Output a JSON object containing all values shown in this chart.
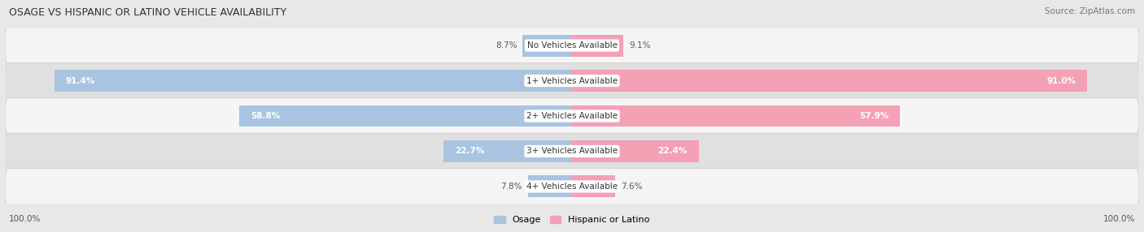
{
  "title": "OSAGE VS HISPANIC OR LATINO VEHICLE AVAILABILITY",
  "source": "Source: ZipAtlas.com",
  "categories": [
    "No Vehicles Available",
    "1+ Vehicles Available",
    "2+ Vehicles Available",
    "3+ Vehicles Available",
    "4+ Vehicles Available"
  ],
  "osage_values": [
    8.7,
    91.4,
    58.8,
    22.7,
    7.8
  ],
  "hispanic_values": [
    9.1,
    91.0,
    57.9,
    22.4,
    7.6
  ],
  "osage_color": "#a8c4e0",
  "hispanic_color": "#f4a0b5",
  "osage_label": "Osage",
  "hispanic_label": "Hispanic or Latino",
  "max_value": 100.0,
  "background_color": "#e8e8e8",
  "row_colors": [
    "#f5f5f5",
    "#e0e0e0"
  ],
  "bar_height": 0.62,
  "figsize": [
    14.06,
    2.86
  ],
  "dpi": 100,
  "title_fontsize": 9,
  "source_fontsize": 7.5,
  "label_fontsize": 7.5,
  "value_fontsize": 7.5
}
